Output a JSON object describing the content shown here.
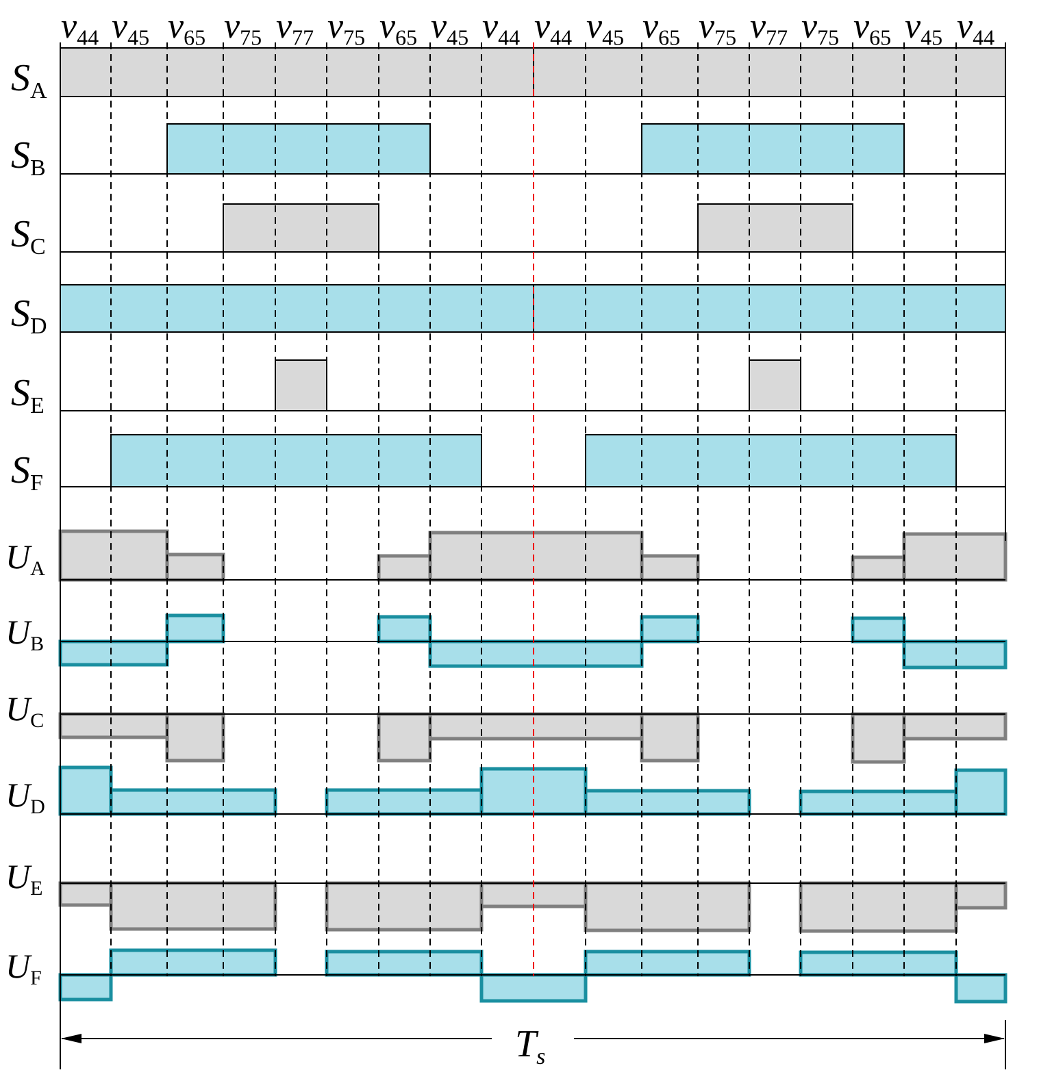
{
  "vectors": [
    {
      "symbol": "v",
      "subscript": "44"
    },
    {
      "symbol": "v",
      "subscript": "45"
    },
    {
      "symbol": "v",
      "subscript": "65"
    },
    {
      "symbol": "v",
      "subscript": "75"
    },
    {
      "symbol": "v",
      "subscript": "77"
    },
    {
      "symbol": "v",
      "subscript": "75"
    },
    {
      "symbol": "v",
      "subscript": "65"
    },
    {
      "symbol": "v",
      "subscript": "45"
    },
    {
      "symbol": "v",
      "subscript": "44"
    },
    {
      "symbol": "v",
      "subscript": "44"
    },
    {
      "symbol": "v",
      "subscript": "45"
    },
    {
      "symbol": "v",
      "subscript": "65"
    },
    {
      "symbol": "v",
      "subscript": "75"
    },
    {
      "symbol": "v",
      "subscript": "77"
    },
    {
      "symbol": "v",
      "subscript": "75"
    },
    {
      "symbol": "v",
      "subscript": "65"
    },
    {
      "symbol": "v",
      "subscript": "45"
    },
    {
      "symbol": "v",
      "subscript": "44"
    }
  ],
  "switch_rows": [
    {
      "symbol": "S",
      "subscript": "A"
    },
    {
      "symbol": "S",
      "subscript": "B"
    },
    {
      "symbol": "S",
      "subscript": "C"
    },
    {
      "symbol": "S",
      "subscript": "D"
    },
    {
      "symbol": "S",
      "subscript": "E"
    },
    {
      "symbol": "S",
      "subscript": "F"
    }
  ],
  "voltage_rows": [
    {
      "symbol": "U",
      "subscript": "A"
    },
    {
      "symbol": "U",
      "subscript": "B"
    },
    {
      "symbol": "U",
      "subscript": "C"
    },
    {
      "symbol": "U",
      "subscript": "D"
    },
    {
      "symbol": "U",
      "subscript": "E"
    },
    {
      "symbol": "U",
      "subscript": "F"
    }
  ],
  "period": {
    "symbol": "T",
    "subscript": "s"
  }
}
